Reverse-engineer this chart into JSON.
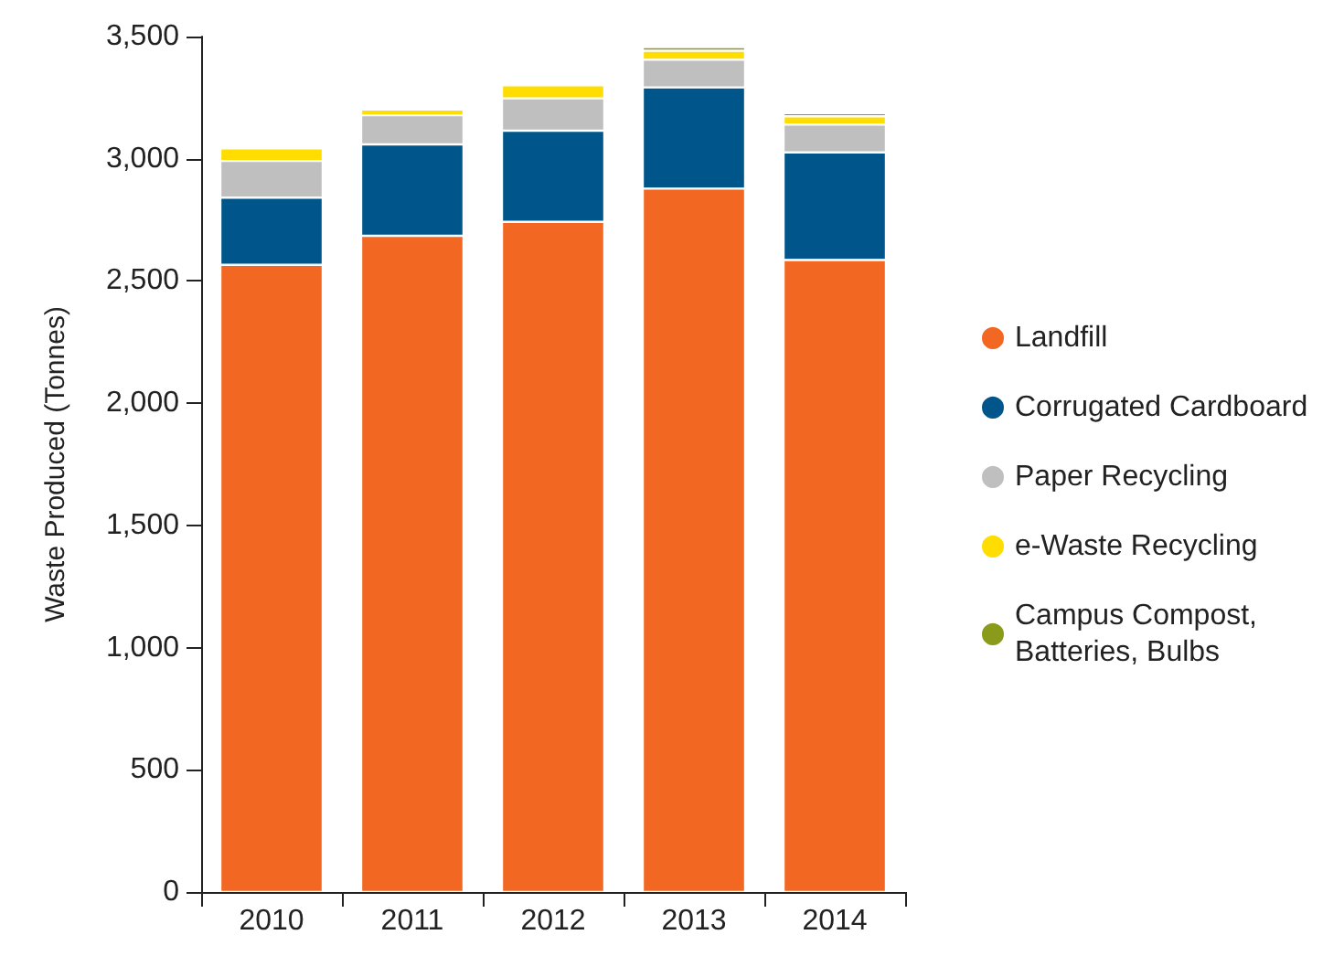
{
  "chart_data": {
    "type": "bar",
    "stacked": true,
    "ylabel": "Waste Produced (Tonnes)",
    "categories": [
      "2010",
      "2011",
      "2012",
      "2013",
      "2014"
    ],
    "series": [
      {
        "name": "Landfill",
        "color": "#f26722",
        "values": [
          2566,
          2685,
          2742,
          2878,
          2586
        ]
      },
      {
        "name": "Corrugated Cardboard",
        "color": "#00558a",
        "values": [
          275,
          374,
          373,
          414,
          440
        ]
      },
      {
        "name": "Paper Recycling",
        "color": "#bfbfc0",
        "values": [
          150,
          119,
          132,
          113,
          114
        ]
      },
      {
        "name": "e-Waste Recycling",
        "color": "#ffdd00",
        "values": [
          52,
          24,
          54,
          37,
          34
        ]
      },
      {
        "name": "Campus Compost,\nBatteries, Bulbs",
        "color": "#8a9a1b",
        "values": [
          null,
          null,
          null,
          15,
          13
        ]
      }
    ],
    "ylim": [
      0,
      3500
    ],
    "yticks": [
      0,
      500,
      {
        "value": 1000,
        "label": "1,000"
      },
      {
        "value": 1500,
        "label": "1,500"
      },
      {
        "value": 2000,
        "label": "2,000"
      },
      {
        "value": 2500,
        "label": "2,500"
      },
      {
        "value": 3000,
        "label": "3,000"
      },
      {
        "value": 3500,
        "label": "3,500"
      }
    ],
    "grid": false,
    "legend": "right"
  }
}
